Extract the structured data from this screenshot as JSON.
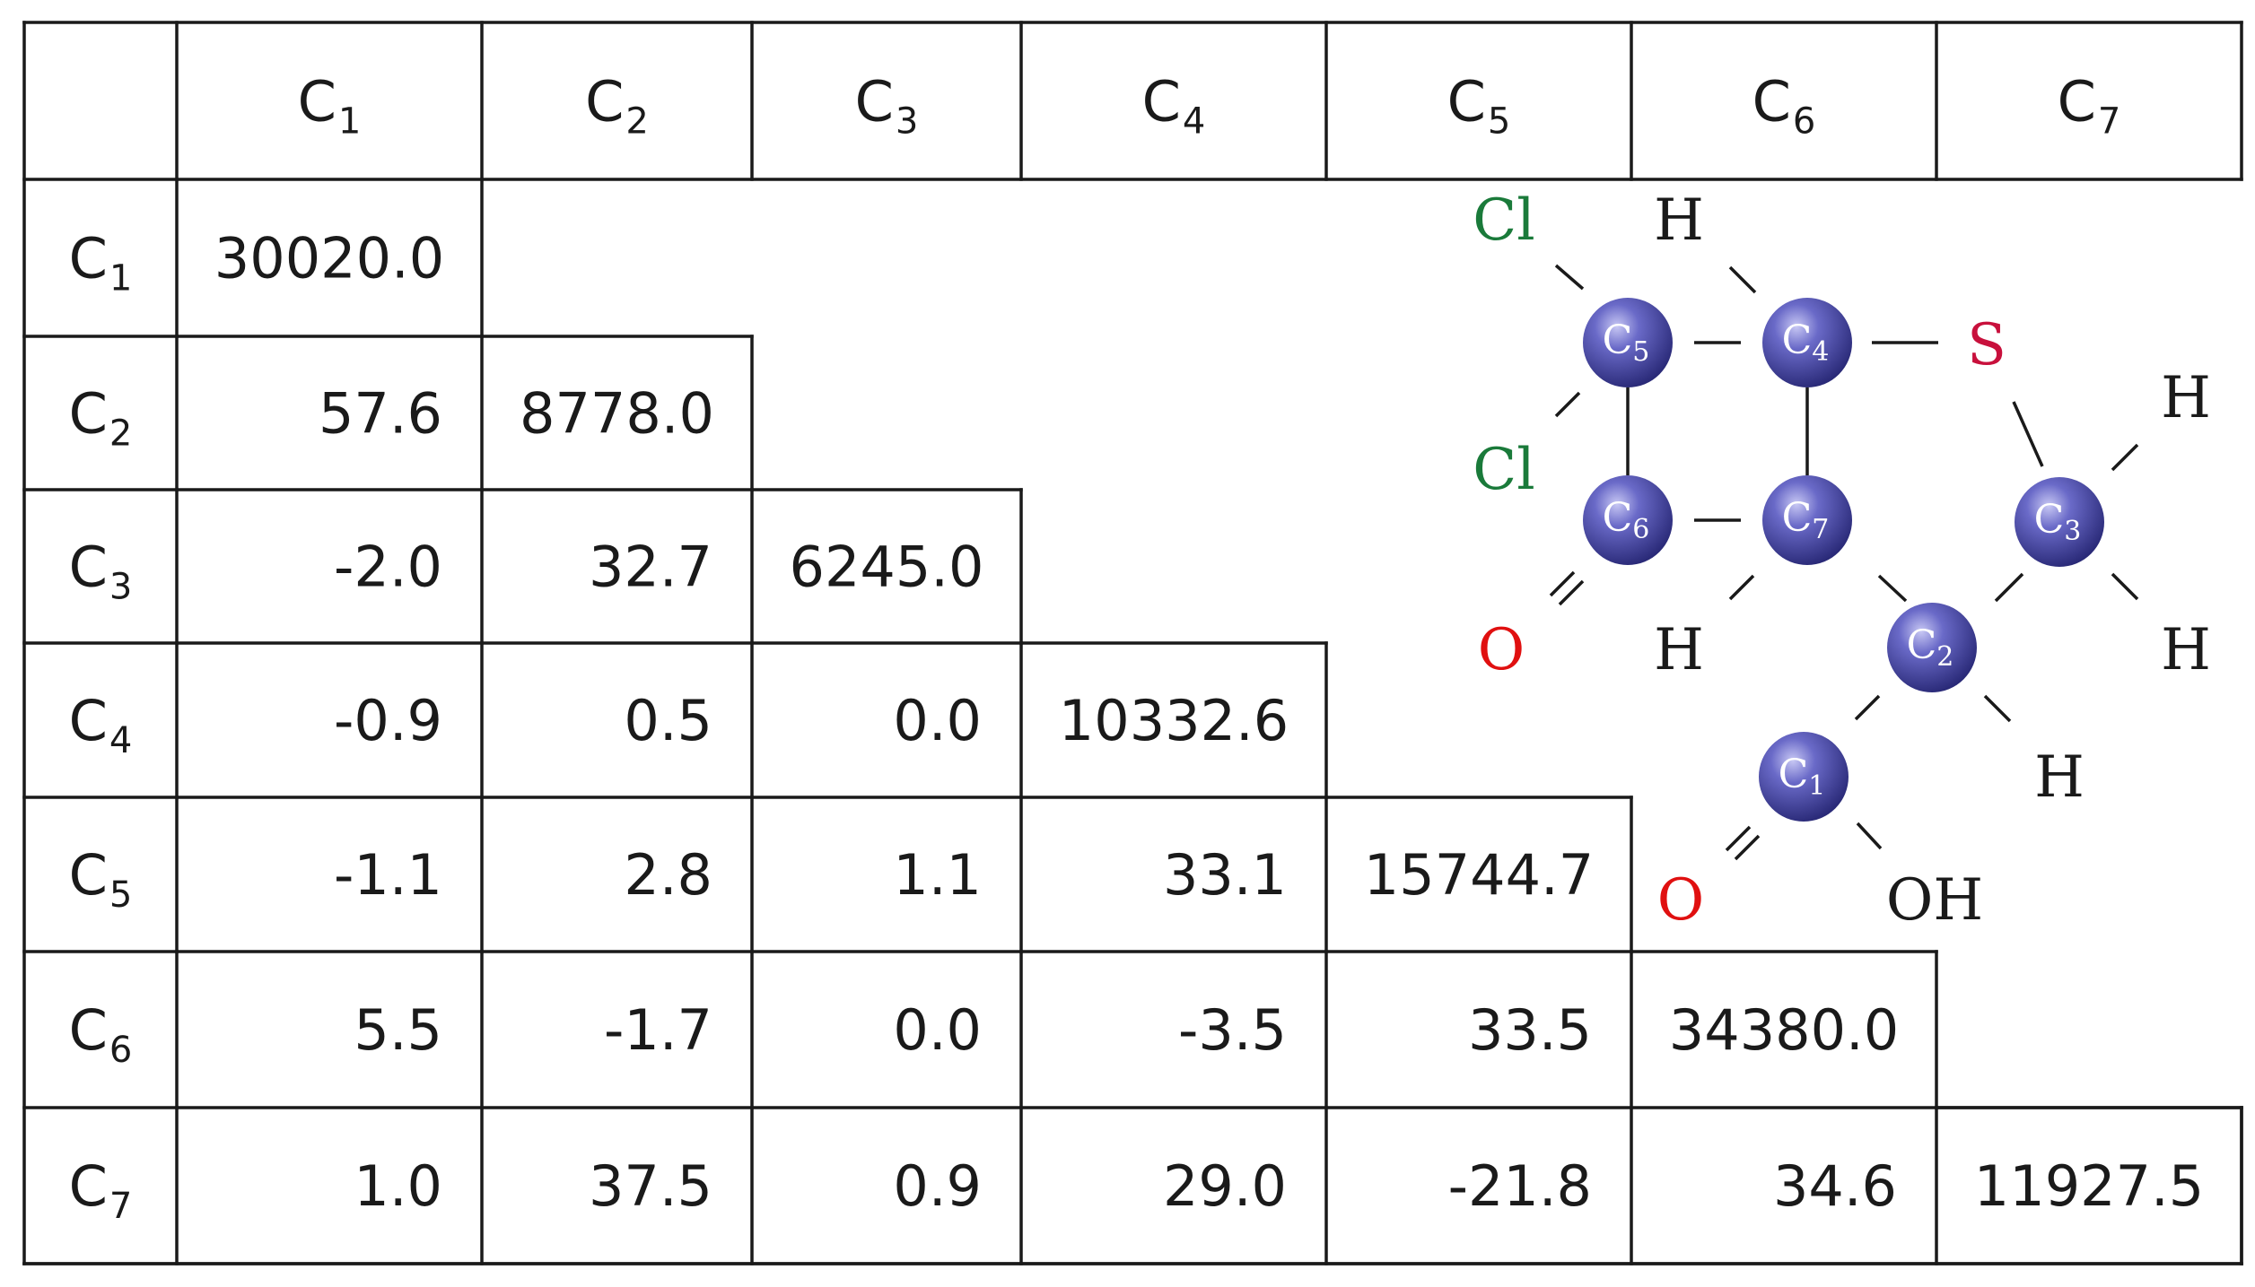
{
  "table": {
    "carbons": [
      "C1",
      "C2",
      "C3",
      "C4",
      "C5",
      "C6",
      "C7"
    ],
    "column_headers": [
      {
        "base": "C",
        "sub": "1"
      },
      {
        "base": "C",
        "sub": "2"
      },
      {
        "base": "C",
        "sub": "3"
      },
      {
        "base": "C",
        "sub": "4"
      },
      {
        "base": "C",
        "sub": "5"
      },
      {
        "base": "C",
        "sub": "6"
      },
      {
        "base": "C",
        "sub": "7"
      }
    ],
    "row_headers": [
      {
        "base": "C",
        "sub": "1"
      },
      {
        "base": "C",
        "sub": "2"
      },
      {
        "base": "C",
        "sub": "3"
      },
      {
        "base": "C",
        "sub": "4"
      },
      {
        "base": "C",
        "sub": "5"
      },
      {
        "base": "C",
        "sub": "6"
      },
      {
        "base": "C",
        "sub": "7"
      }
    ],
    "rows": [
      [
        "30020.0"
      ],
      [
        "57.6",
        "8778.0"
      ],
      [
        "-2.0",
        "32.7",
        "6245.0"
      ],
      [
        "-0.9",
        "0.5",
        "0.0",
        "10332.6"
      ],
      [
        "-1.1",
        "2.8",
        "1.1",
        "33.1",
        "15744.7"
      ],
      [
        "5.5",
        "-1.7",
        "0.0",
        "-3.5",
        "33.5",
        "34380.0"
      ],
      [
        "1.0",
        "37.5",
        "0.9",
        "29.0",
        "-21.8",
        "34.6",
        "11927.5"
      ]
    ]
  },
  "molecule": {
    "colors": {
      "carbon_ball": "#3a3a8c",
      "carbon_ball_highlight": "#9a9ae0",
      "chlorine": "#1a7a3a",
      "oxygen": "#e01010",
      "sulfur": "#c8103c",
      "hydrogen": "#1a1a1a",
      "bond": "#1a1a1a"
    },
    "carbons": [
      {
        "id": "C1",
        "base": "C",
        "sub": "1"
      },
      {
        "id": "C2",
        "base": "C",
        "sub": "2"
      },
      {
        "id": "C3",
        "base": "C",
        "sub": "3"
      },
      {
        "id": "C4",
        "base": "C",
        "sub": "4"
      },
      {
        "id": "C5",
        "base": "C",
        "sub": "5"
      },
      {
        "id": "C6",
        "base": "C",
        "sub": "6"
      },
      {
        "id": "C7",
        "base": "C",
        "sub": "7"
      }
    ],
    "atoms": [
      {
        "id": "cl_top",
        "label": "Cl",
        "element": "chlorine"
      },
      {
        "id": "h_top",
        "label": "H",
        "element": "hydrogen"
      },
      {
        "id": "s",
        "label": "S",
        "element": "sulfur"
      },
      {
        "id": "h_c3_top",
        "label": "H",
        "element": "hydrogen"
      },
      {
        "id": "cl_mid",
        "label": "Cl",
        "element": "chlorine"
      },
      {
        "id": "o_c6",
        "label": "O",
        "element": "oxygen"
      },
      {
        "id": "h_c7",
        "label": "H",
        "element": "hydrogen"
      },
      {
        "id": "h_c3_bot",
        "label": "H",
        "element": "hydrogen"
      },
      {
        "id": "h_c2",
        "label": "H",
        "element": "hydrogen"
      },
      {
        "id": "o_c1",
        "label": "O",
        "element": "oxygen"
      },
      {
        "id": "oh_c1",
        "label": "OH",
        "element": "hydrogen"
      }
    ]
  }
}
